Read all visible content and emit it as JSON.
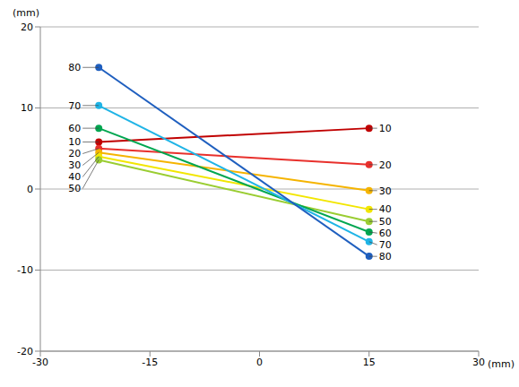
{
  "chart_data": {
    "type": "line",
    "x": [
      -22,
      15
    ],
    "xlim": [
      -30,
      30
    ],
    "xticks": [
      -30,
      -15,
      0,
      15,
      30
    ],
    "ylim": [
      -20,
      20
    ],
    "yticks": [
      -20,
      -10,
      0,
      10,
      20
    ],
    "x_label": "(mm)",
    "y_label": "(mm)",
    "grid": true,
    "marker": "circle",
    "series": [
      {
        "name": "10",
        "color": "#c00000",
        "values": [
          5.8,
          7.5
        ]
      },
      {
        "name": "20",
        "color": "#e8302c",
        "values": [
          5.0,
          3.0
        ]
      },
      {
        "name": "30",
        "color": "#f5b400",
        "values": [
          4.5,
          -0.2
        ]
      },
      {
        "name": "40",
        "color": "#f2e600",
        "values": [
          4.0,
          -2.5
        ]
      },
      {
        "name": "50",
        "color": "#9acd32",
        "values": [
          3.6,
          -4.0
        ]
      },
      {
        "name": "60",
        "color": "#00a650",
        "values": [
          7.5,
          -5.3
        ]
      },
      {
        "name": "70",
        "color": "#1fb4e6",
        "values": [
          10.3,
          -6.5
        ]
      },
      {
        "name": "80",
        "color": "#1f5fbf",
        "values": [
          15.0,
          -8.3
        ]
      }
    ]
  }
}
